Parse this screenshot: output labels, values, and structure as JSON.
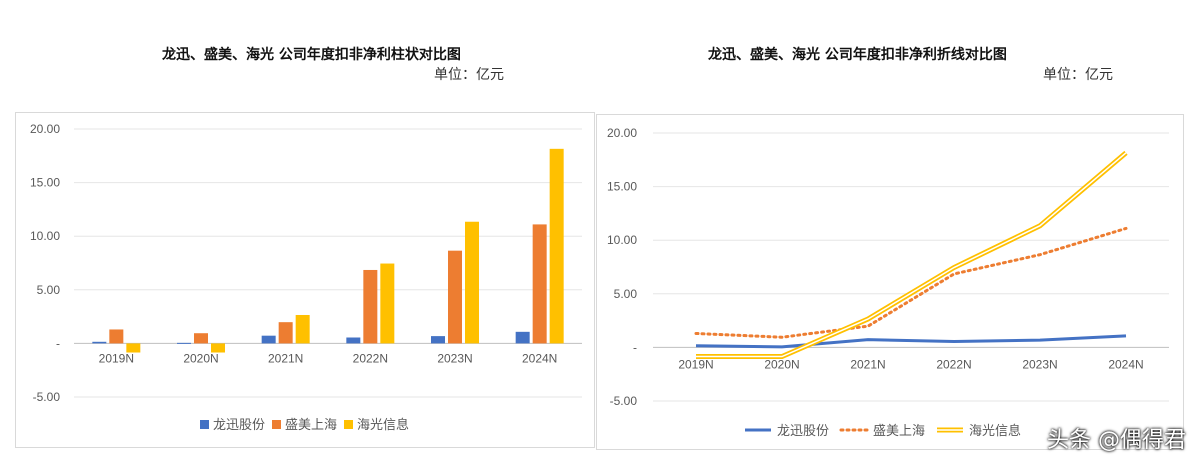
{
  "left": {
    "title": "龙迅、盛美、海光 公司年度扣非净利柱状对比图",
    "unit": "单位：亿元"
  },
  "right": {
    "title": "龙迅、盛美、海光 公司年度扣非净利折线对比图",
    "unit": "单位：亿元"
  },
  "watermark": "头条 @偶得君",
  "colors": {
    "longxun": "#4472C4",
    "shengmei": "#ED7D31",
    "haiguang": "#FFC000"
  },
  "chart_data": [
    {
      "type": "bar",
      "title": "龙迅、盛美、海光 公司年度扣非净利柱状对比图",
      "categories": [
        "2019N",
        "2020N",
        "2021N",
        "2022N",
        "2023N",
        "2024N"
      ],
      "series": [
        {
          "name": "龙迅股份",
          "values": [
            0.15,
            0.05,
            0.72,
            0.55,
            0.68,
            1.08
          ]
        },
        {
          "name": "盛美上海",
          "values": [
            1.3,
            0.95,
            1.98,
            6.85,
            8.65,
            11.1
          ]
        },
        {
          "name": "海光信息",
          "values": [
            -0.85,
            -0.85,
            2.65,
            7.45,
            11.35,
            18.15
          ]
        }
      ],
      "ylim": [
        -5,
        20
      ],
      "yticks": [
        "20.00",
        "15.00",
        "10.00",
        "5.00",
        "-",
        "-5.00"
      ],
      "ytick_values": [
        20,
        15,
        10,
        5,
        0,
        -5
      ],
      "legend": "bottom",
      "grid": true
    },
    {
      "type": "line",
      "title": "龙迅、盛美、海光 公司年度扣非净利折线对比图",
      "categories": [
        "2019N",
        "2020N",
        "2021N",
        "2022N",
        "2023N",
        "2024N"
      ],
      "series": [
        {
          "name": "龙迅股份",
          "values": [
            0.15,
            0.05,
            0.72,
            0.55,
            0.68,
            1.08
          ],
          "style": "solid"
        },
        {
          "name": "盛美上海",
          "values": [
            1.3,
            0.95,
            1.98,
            6.85,
            8.65,
            11.1
          ],
          "style": "dotted"
        },
        {
          "name": "海光信息",
          "values": [
            -0.85,
            -0.85,
            2.65,
            7.45,
            11.35,
            18.15
          ],
          "style": "double"
        }
      ],
      "ylim": [
        -5,
        20
      ],
      "yticks": [
        "20.00",
        "15.00",
        "10.00",
        "5.00",
        "-",
        "-5.00"
      ],
      "ytick_values": [
        20,
        15,
        10,
        5,
        0,
        -5
      ],
      "legend": "bottom",
      "grid": true
    }
  ]
}
